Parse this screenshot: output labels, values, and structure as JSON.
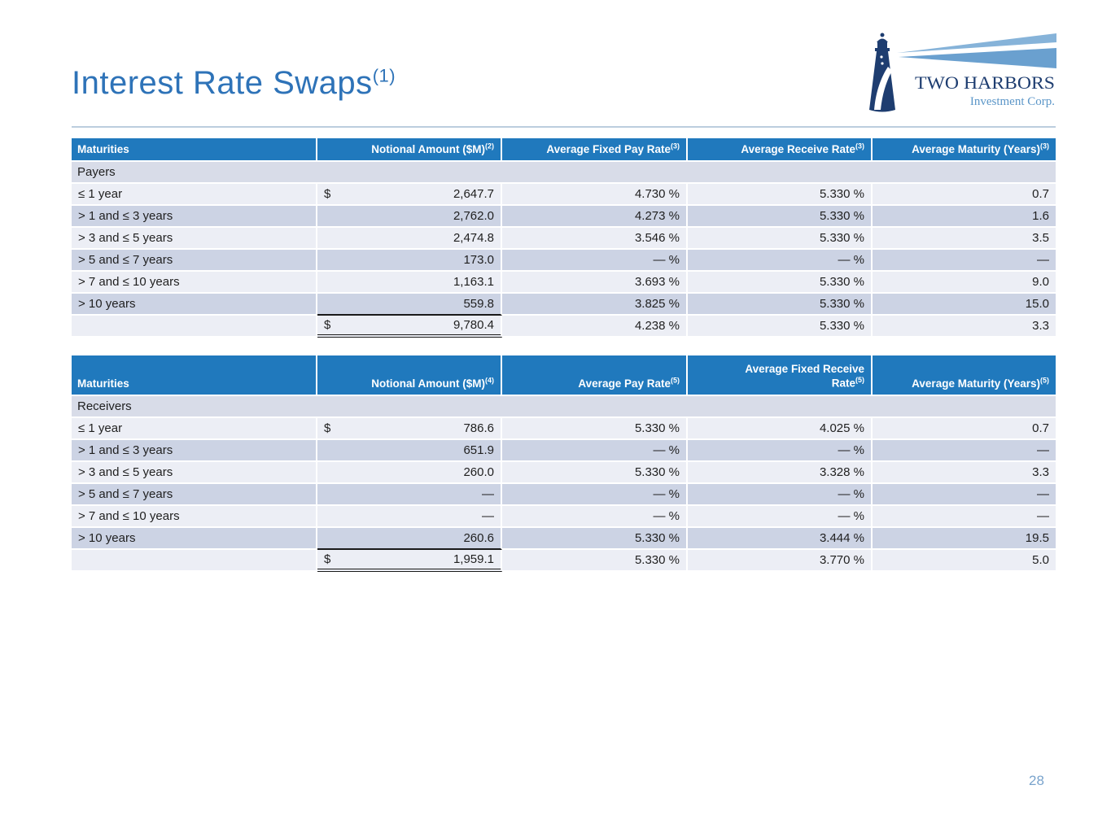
{
  "slide": {
    "title": "Interest Rate Swaps",
    "title_sup": "(1)",
    "page_number": "28"
  },
  "logo": {
    "company": "TWO HARBORS",
    "subtitle": "Investment Corp.",
    "icon": "lighthouse-with-light-beams-icon",
    "navy": "#1e3d70",
    "light_blue": "#6aa0cf"
  },
  "colors": {
    "title_blue": "#2e73b8",
    "table_header_bg": "#2079bd",
    "row_light": "#eceef5",
    "row_dark": "#ccd3e4",
    "group_row_bg": "#d8dce8",
    "body_text": "#1f1f1f",
    "page_number_blue": "#79a3cc"
  },
  "tables": [
    {
      "id": "payers",
      "group_label": "Payers",
      "columns": [
        {
          "label": "Maturities",
          "sup": ""
        },
        {
          "label": "Notional Amount ($M)",
          "sup": "(2)"
        },
        {
          "label": "Average Fixed Pay Rate",
          "sup": "(3)"
        },
        {
          "label": "Average Receive Rate",
          "sup": "(3)"
        },
        {
          "label": "Average Maturity (Years)",
          "sup": "(3)"
        }
      ],
      "rows": [
        {
          "maturity": "≤ 1 year",
          "dollar": "$",
          "notional": "2,647.7",
          "col3": "4.730 %",
          "col4": "5.330 %",
          "col5": "0.7"
        },
        {
          "maturity": "> 1 and ≤ 3 years",
          "dollar": "",
          "notional": "2,762.0",
          "col3": "4.273 %",
          "col4": "5.330 %",
          "col5": "1.6"
        },
        {
          "maturity": "> 3 and ≤ 5 years",
          "dollar": "",
          "notional": "2,474.8",
          "col3": "3.546 %",
          "col4": "5.330 %",
          "col5": "3.5"
        },
        {
          "maturity": "> 5 and ≤ 7 years",
          "dollar": "",
          "notional": "173.0",
          "col3": "— %",
          "col4": "— %",
          "col5": "—"
        },
        {
          "maturity": "> 7 and ≤ 10 years",
          "dollar": "",
          "notional": "1,163.1",
          "col3": "3.693 %",
          "col4": "5.330 %",
          "col5": "9.0"
        },
        {
          "maturity": "> 10 years",
          "dollar": "",
          "notional": "559.8",
          "col3": "3.825 %",
          "col4": "5.330 %",
          "col5": "15.0"
        }
      ],
      "total": {
        "maturity": "",
        "dollar": "$",
        "notional": "9,780.4",
        "col3": "4.238 %",
        "col4": "5.330 %",
        "col5": "3.3"
      }
    },
    {
      "id": "receivers",
      "group_label": "Receivers",
      "columns": [
        {
          "label": "Maturities",
          "sup": ""
        },
        {
          "label": "Notional Amount ($M)",
          "sup": "(4)"
        },
        {
          "label": "Average Pay Rate",
          "sup": "(5)"
        },
        {
          "label": "Average Fixed Receive Rate",
          "sup": "(5)"
        },
        {
          "label": "Average Maturity (Years)",
          "sup": "(5)"
        }
      ],
      "rows": [
        {
          "maturity": "≤ 1 year",
          "dollar": "$",
          "notional": "786.6",
          "col3": "5.330 %",
          "col4": "4.025 %",
          "col5": "0.7"
        },
        {
          "maturity": "> 1 and ≤ 3 years",
          "dollar": "",
          "notional": "651.9",
          "col3": "— %",
          "col4": "— %",
          "col5": "—"
        },
        {
          "maturity": "> 3 and ≤ 5 years",
          "dollar": "",
          "notional": "260.0",
          "col3": "5.330 %",
          "col4": "3.328 %",
          "col5": "3.3"
        },
        {
          "maturity": "> 5 and ≤ 7 years",
          "dollar": "",
          "notional": "—",
          "col3": "— %",
          "col4": "— %",
          "col5": "—"
        },
        {
          "maturity": "> 7 and ≤ 10 years",
          "dollar": "",
          "notional": "—",
          "col3": "— %",
          "col4": "— %",
          "col5": "—"
        },
        {
          "maturity": "> 10 years",
          "dollar": "",
          "notional": "260.6",
          "col3": "5.330 %",
          "col4": "3.444 %",
          "col5": "19.5"
        }
      ],
      "total": {
        "maturity": "",
        "dollar": "$",
        "notional": "1,959.1",
        "col3": "5.330 %",
        "col4": "3.770 %",
        "col5": "5.0"
      }
    }
  ]
}
